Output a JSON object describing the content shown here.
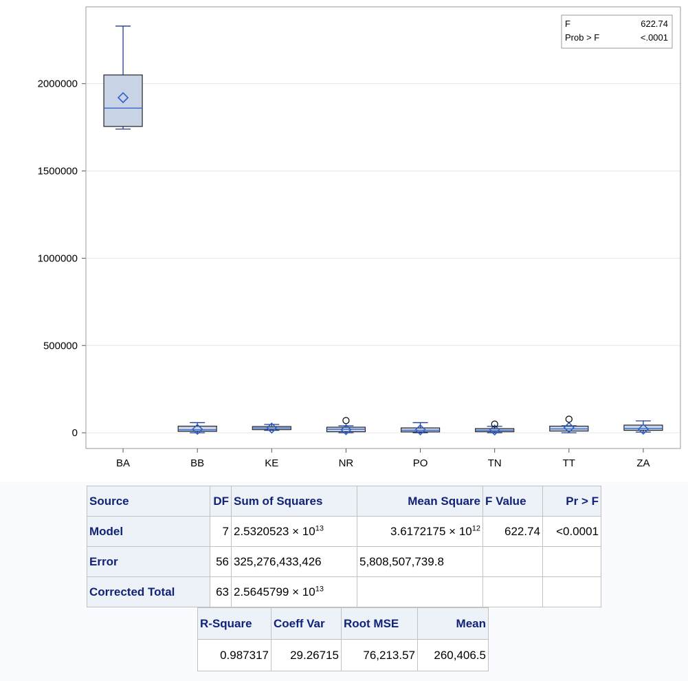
{
  "chart_data": {
    "type": "box",
    "categories": [
      "BA",
      "BB",
      "KE",
      "NR",
      "PO",
      "TN",
      "TT",
      "ZA"
    ],
    "y_ticks": [
      0,
      500000,
      1000000,
      1500000,
      2000000
    ],
    "y_tick_labels": [
      "0",
      "500000",
      "1000000",
      "1500000",
      "2000000"
    ],
    "ylim": [
      -90000,
      2440000
    ],
    "grid": true,
    "colors": {
      "box_fill": "#c8d3e6",
      "box_stroke": "#1f3a8f",
      "median": "#3366cc",
      "mean": "#2a5fcf",
      "outlier": "#000000",
      "grid": "#e6e6e6"
    },
    "boxes": [
      {
        "category": "BA",
        "min": 1740000,
        "q1": 1755000,
        "median": 1860000,
        "q3": 2050000,
        "max": 2330000,
        "mean": 1920000,
        "outliers": []
      },
      {
        "category": "BB",
        "min": 0,
        "q1": 8000,
        "median": 17000,
        "q3": 38000,
        "max": 58000,
        "mean": 20000,
        "outliers": []
      },
      {
        "category": "KE",
        "min": 14000,
        "q1": 18000,
        "median": 27000,
        "q3": 36000,
        "max": 48000,
        "mean": 27000,
        "outliers": []
      },
      {
        "category": "NR",
        "min": 0,
        "q1": 6000,
        "median": 20000,
        "q3": 32000,
        "max": 40000,
        "mean": 18000,
        "outliers": [
          70000
        ]
      },
      {
        "category": "PO",
        "min": 0,
        "q1": 5000,
        "median": 14000,
        "q3": 28000,
        "max": 58000,
        "mean": 17000,
        "outliers": []
      },
      {
        "category": "TN",
        "min": 0,
        "q1": 6000,
        "median": 14000,
        "q3": 24000,
        "max": 37000,
        "mean": 16000,
        "outliers": [
          50000
        ]
      },
      {
        "category": "TT",
        "min": 0,
        "q1": 10000,
        "median": 22000,
        "q3": 38000,
        "max": 40000,
        "mean": 30000,
        "outliers": [
          78000
        ]
      },
      {
        "category": "ZA",
        "min": 4000,
        "q1": 14000,
        "median": 24000,
        "q3": 44000,
        "max": 68000,
        "mean": 21000,
        "outliers": []
      }
    ],
    "inset": {
      "rows": [
        {
          "label": "F",
          "value": "622.74"
        },
        {
          "label": "Prob > F",
          "value": "<.0001"
        }
      ],
      "placement": "top-right"
    }
  },
  "anova_table": {
    "headers": {
      "source": "Source",
      "df": "DF",
      "ss": "Sum of Squares",
      "ms": "Mean Square",
      "f": "F Value",
      "p": "Pr > F"
    },
    "model": {
      "source": "Model",
      "df": "7",
      "ss_mant": "2.5320523",
      "ss_exp": "13",
      "ms_mant": "3.6172175",
      "ms_exp": "12",
      "f": "622.74",
      "p": "<0.0001"
    },
    "error": {
      "source": "Error",
      "df": "56",
      "ss": "325,276,433,426",
      "ms": "5,808,507,739.8"
    },
    "total": {
      "source": "Corrected Total",
      "df": "63",
      "ss_mant": "2.5645799",
      "ss_exp": "13"
    },
    "times": "×",
    "ten": "10"
  },
  "fit_table": {
    "headers": {
      "rsq": "R-Square",
      "cv": "Coeff Var",
      "rmse": "Root MSE",
      "mean": "Mean"
    },
    "values": {
      "rsq": "0.987317",
      "cv": "29.26715",
      "rmse": "76,213.57",
      "mean": "260,406.5"
    }
  }
}
